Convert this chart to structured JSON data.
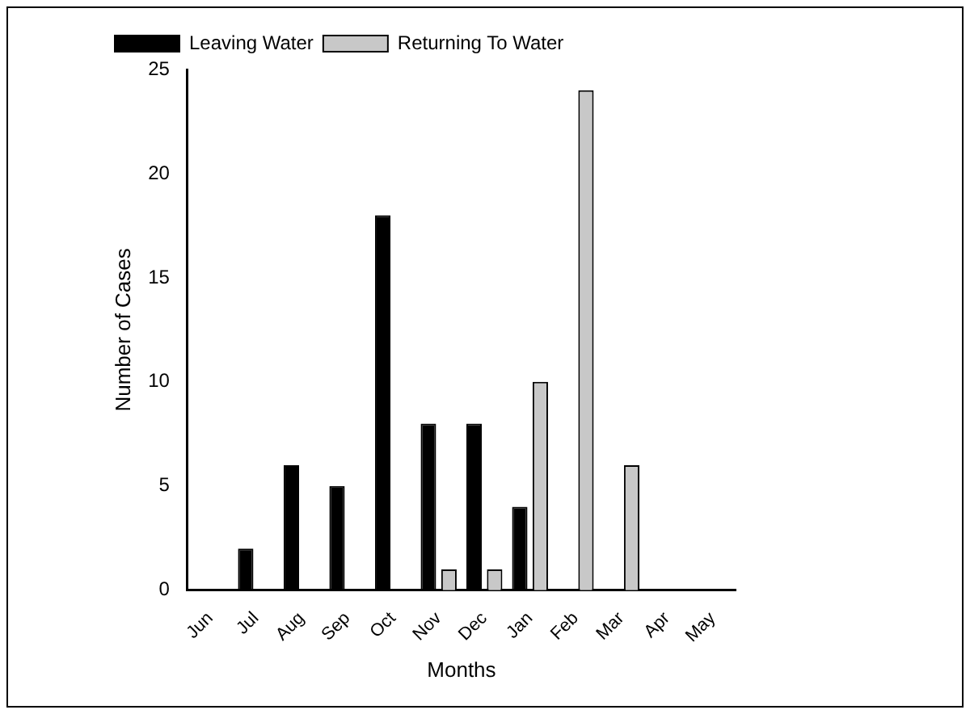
{
  "chart_data": {
    "type": "bar",
    "xlabel": "Months",
    "ylabel": "Number of Cases",
    "categories": [
      "Jun",
      "Jul",
      "Aug",
      "Sep",
      "Oct",
      "Nov",
      "Dec",
      "Jan",
      "Feb",
      "Mar",
      "Apr",
      "May"
    ],
    "series": [
      {
        "name": "Leaving Water",
        "color": "#000000",
        "values": [
          null,
          2,
          6,
          5,
          18,
          8,
          8,
          4,
          null,
          null,
          null,
          null
        ]
      },
      {
        "name": "Returning To Water",
        "color": "#c8c8c8",
        "values": [
          null,
          null,
          null,
          null,
          null,
          1,
          1,
          10,
          24,
          6,
          null,
          null
        ]
      }
    ],
    "ylim": [
      0,
      25
    ],
    "yticks": [
      0,
      5,
      10,
      15,
      20,
      25
    ],
    "grid": false,
    "legend": "top left"
  }
}
